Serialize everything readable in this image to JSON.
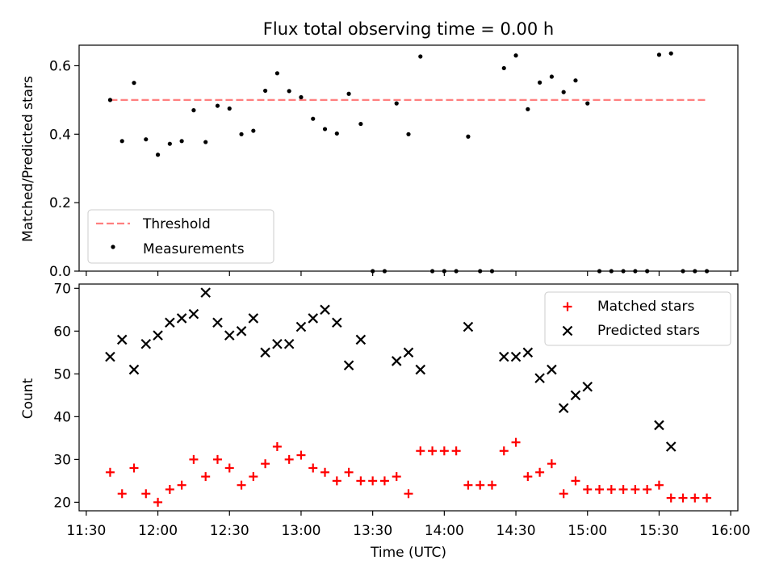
{
  "chart_data": [
    {
      "type": "scatter",
      "title": "Flux total observing time = 0.00 h",
      "ylabel": "Matched/Predicted stars",
      "ylim": [
        0,
        0.66
      ],
      "xlim": [
        "11:27",
        "16:03"
      ],
      "yticks": [
        "0.0",
        "0.2",
        "0.4",
        "0.6"
      ],
      "legend_placement": "lower-left",
      "threshold": {
        "name": "Threshold",
        "value": 0.5,
        "x_range": [
          "11:40",
          "15:50"
        ],
        "color": "#ff7f7f",
        "style": "dashed"
      },
      "series": [
        {
          "name": "Measurements",
          "color": "#000000",
          "points": [
            [
              "11:40",
              0.5
            ],
            [
              "11:45",
              0.38
            ],
            [
              "11:50",
              0.55
            ],
            [
              "11:55",
              0.385
            ],
            [
              "12:00",
              0.34
            ],
            [
              "12:05",
              0.372
            ],
            [
              "12:10",
              0.38
            ],
            [
              "12:15",
              0.47
            ],
            [
              "12:20",
              0.377
            ],
            [
              "12:25",
              0.483
            ],
            [
              "12:30",
              0.475
            ],
            [
              "12:35",
              0.4
            ],
            [
              "12:40",
              0.41
            ],
            [
              "12:45",
              0.527
            ],
            [
              "12:50",
              0.578
            ],
            [
              "12:55",
              0.526
            ],
            [
              "13:00",
              0.508
            ],
            [
              "13:05",
              0.445
            ],
            [
              "13:10",
              0.415
            ],
            [
              "13:15",
              0.402
            ],
            [
              "13:20",
              0.518
            ],
            [
              "13:25",
              0.43
            ],
            [
              "13:30",
              0.0
            ],
            [
              "13:35",
              0.0
            ],
            [
              "13:40",
              0.49
            ],
            [
              "13:45",
              0.4
            ],
            [
              "13:50",
              0.627
            ],
            [
              "13:55",
              0.0
            ],
            [
              "14:00",
              0.0
            ],
            [
              "14:05",
              0.0
            ],
            [
              "14:10",
              0.393
            ],
            [
              "14:15",
              0.0
            ],
            [
              "14:20",
              0.0
            ],
            [
              "14:25",
              0.593
            ],
            [
              "14:30",
              0.63
            ],
            [
              "14:35",
              0.473
            ],
            [
              "14:40",
              0.551
            ],
            [
              "14:45",
              0.568
            ],
            [
              "14:50",
              0.523
            ],
            [
              "14:55",
              0.557
            ],
            [
              "15:00",
              0.49
            ],
            [
              "15:05",
              0.0
            ],
            [
              "15:10",
              0.0
            ],
            [
              "15:15",
              0.0
            ],
            [
              "15:20",
              0.0
            ],
            [
              "15:25",
              0.0
            ],
            [
              "15:30",
              0.632
            ],
            [
              "15:35",
              0.636
            ],
            [
              "15:40",
              0.0
            ],
            [
              "15:45",
              0.0
            ],
            [
              "15:50",
              0.0
            ]
          ]
        }
      ]
    },
    {
      "type": "scatter",
      "xlabel": "Time (UTC)",
      "ylabel": "Count",
      "ylim": [
        18,
        71
      ],
      "xlim": [
        "11:27",
        "16:03"
      ],
      "xticks": [
        "11:30",
        "12:00",
        "12:30",
        "13:00",
        "13:30",
        "14:00",
        "14:30",
        "15:00",
        "15:30",
        "16:00"
      ],
      "yticks": [
        "20",
        "30",
        "40",
        "50",
        "60",
        "70"
      ],
      "legend_placement": "top-right",
      "series": [
        {
          "name": "Matched stars",
          "marker": "+",
          "color": "#ff0000",
          "points": [
            [
              "11:40",
              27
            ],
            [
              "11:45",
              22
            ],
            [
              "11:50",
              28
            ],
            [
              "11:55",
              22
            ],
            [
              "12:00",
              20
            ],
            [
              "12:05",
              23
            ],
            [
              "12:10",
              24
            ],
            [
              "12:15",
              30
            ],
            [
              "12:20",
              26
            ],
            [
              "12:25",
              30
            ],
            [
              "12:30",
              28
            ],
            [
              "12:35",
              24
            ],
            [
              "12:40",
              26
            ],
            [
              "12:45",
              29
            ],
            [
              "12:50",
              33
            ],
            [
              "12:55",
              30
            ],
            [
              "13:00",
              31
            ],
            [
              "13:05",
              28
            ],
            [
              "13:10",
              27
            ],
            [
              "13:15",
              25
            ],
            [
              "13:20",
              27
            ],
            [
              "13:25",
              25
            ],
            [
              "13:30",
              25
            ],
            [
              "13:35",
              25
            ],
            [
              "13:40",
              26
            ],
            [
              "13:45",
              22
            ],
            [
              "13:50",
              32
            ],
            [
              "13:55",
              32
            ],
            [
              "14:00",
              32
            ],
            [
              "14:05",
              32
            ],
            [
              "14:10",
              24
            ],
            [
              "14:15",
              24
            ],
            [
              "14:20",
              24
            ],
            [
              "14:25",
              32
            ],
            [
              "14:30",
              34
            ],
            [
              "14:35",
              26
            ],
            [
              "14:40",
              27
            ],
            [
              "14:45",
              29
            ],
            [
              "14:50",
              22
            ],
            [
              "14:55",
              25
            ],
            [
              "15:00",
              23
            ],
            [
              "15:05",
              23
            ],
            [
              "15:10",
              23
            ],
            [
              "15:15",
              23
            ],
            [
              "15:20",
              23
            ],
            [
              "15:25",
              23
            ],
            [
              "15:30",
              24
            ],
            [
              "15:35",
              21
            ],
            [
              "15:40",
              21
            ],
            [
              "15:45",
              21
            ],
            [
              "15:50",
              21
            ]
          ]
        },
        {
          "name": "Predicted stars",
          "marker": "x",
          "color": "#000000",
          "points": [
            [
              "11:40",
              54
            ],
            [
              "11:45",
              58
            ],
            [
              "11:50",
              51
            ],
            [
              "11:55",
              57
            ],
            [
              "12:00",
              59
            ],
            [
              "12:05",
              62
            ],
            [
              "12:10",
              63
            ],
            [
              "12:15",
              64
            ],
            [
              "12:20",
              69
            ],
            [
              "12:25",
              62
            ],
            [
              "12:30",
              59
            ],
            [
              "12:35",
              60
            ],
            [
              "12:40",
              63
            ],
            [
              "12:45",
              55
            ],
            [
              "12:50",
              57
            ],
            [
              "12:55",
              57
            ],
            [
              "13:00",
              61
            ],
            [
              "13:05",
              63
            ],
            [
              "13:10",
              65
            ],
            [
              "13:15",
              62
            ],
            [
              "13:20",
              52
            ],
            [
              "13:25",
              58
            ],
            [
              "13:40",
              53
            ],
            [
              "13:45",
              55
            ],
            [
              "13:50",
              51
            ],
            [
              "14:10",
              61
            ],
            [
              "14:25",
              54
            ],
            [
              "14:30",
              54
            ],
            [
              "14:35",
              55
            ],
            [
              "14:40",
              49
            ],
            [
              "14:45",
              51
            ],
            [
              "14:50",
              42
            ],
            [
              "14:55",
              45
            ],
            [
              "15:00",
              47
            ],
            [
              "15:30",
              38
            ],
            [
              "15:35",
              33
            ]
          ]
        }
      ]
    }
  ]
}
